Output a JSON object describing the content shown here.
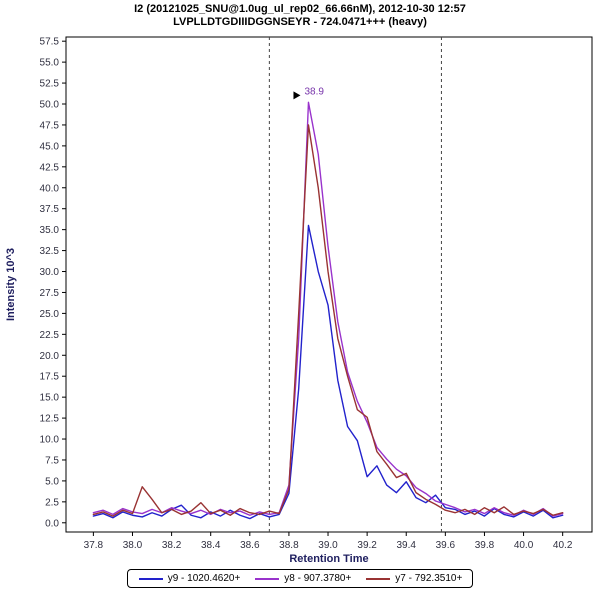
{
  "header": {
    "title_line1": "I2 (20121025_SNU@1.0ug_ul_rep02_66.66nM), 2012-10-30 12:57",
    "title_line2": "LVPLLDTGDIIIDGGNSEYR - 724.0471+++ (heavy)"
  },
  "chart_data": {
    "type": "line",
    "title": "I2 (20121025_SNU@1.0ug_ul_rep02_66.66nM), 2012-10-30 12:57",
    "subtitle": "LVPLLDTGDIIIDGGNSEYR - 724.0471+++ (heavy)",
    "xlabel": "Retention Time",
    "ylabel": "Intensity 10^3",
    "xlim": [
      37.66,
      40.35
    ],
    "ylim": [
      -1.1,
      58.0
    ],
    "xticks": [
      37.8,
      38.0,
      38.2,
      38.4,
      38.6,
      38.8,
      39.0,
      39.2,
      39.4,
      39.6,
      39.8,
      40.0,
      40.2
    ],
    "yticks": [
      0.0,
      2.5,
      5.0,
      7.5,
      10.0,
      12.5,
      15.0,
      17.5,
      20.0,
      22.5,
      25.0,
      27.5,
      30.0,
      32.5,
      35.0,
      37.5,
      40.0,
      42.5,
      45.0,
      47.5,
      50.0,
      52.5,
      55.0,
      57.5
    ],
    "grid": false,
    "legend_position": "bottom",
    "boundaries": [
      38.7,
      39.58
    ],
    "peak_annotation": {
      "x": 38.9,
      "y": 50.2,
      "label": "38.9"
    },
    "colors": {
      "tick_label": "#303040",
      "axis_title": "#202060",
      "boundary": "#444444",
      "annotation_text": "#7733aa",
      "peak_arrow": "#000000",
      "plot_border": "#000000"
    },
    "x": [
      37.8,
      37.85,
      37.9,
      37.95,
      38.0,
      38.05,
      38.1,
      38.15,
      38.2,
      38.25,
      38.3,
      38.35,
      38.4,
      38.45,
      38.5,
      38.55,
      38.6,
      38.65,
      38.7,
      38.75,
      38.8,
      38.85,
      38.9,
      38.95,
      39.0,
      39.05,
      39.1,
      39.15,
      39.2,
      39.25,
      39.3,
      39.35,
      39.4,
      39.45,
      39.5,
      39.55,
      39.6,
      39.65,
      39.7,
      39.75,
      39.8,
      39.85,
      39.9,
      39.95,
      40.0,
      40.05,
      40.1,
      40.15,
      40.2
    ],
    "series": [
      {
        "id": "y9",
        "name": "y9 - 1020.4620+",
        "color": "#2222cc",
        "values": [
          0.8,
          1.1,
          0.6,
          1.3,
          0.9,
          0.7,
          1.2,
          0.8,
          1.6,
          2.1,
          0.9,
          0.6,
          1.3,
          0.8,
          1.5,
          0.9,
          0.5,
          1.1,
          0.7,
          1.0,
          3.5,
          16.0,
          35.5,
          30.0,
          26.0,
          17.0,
          11.5,
          9.8,
          5.5,
          6.8,
          4.5,
          3.6,
          4.9,
          3.0,
          2.4,
          3.3,
          1.8,
          1.6,
          1.0,
          1.4,
          0.8,
          1.7,
          1.0,
          0.7,
          1.3,
          0.8,
          1.5,
          0.6,
          0.9
        ]
      },
      {
        "id": "y8",
        "name": "y8 - 907.3780+",
        "color": "#9933cc",
        "values": [
          1.2,
          1.5,
          1.0,
          1.7,
          1.3,
          1.1,
          1.6,
          1.2,
          1.8,
          1.4,
          1.1,
          1.5,
          1.0,
          1.6,
          1.2,
          1.4,
          0.9,
          1.3,
          1.0,
          1.2,
          4.5,
          22.0,
          50.2,
          44.0,
          33.0,
          24.0,
          18.0,
          14.5,
          12.0,
          9.0,
          7.6,
          6.4,
          5.6,
          4.2,
          3.5,
          2.6,
          2.2,
          1.8,
          1.3,
          1.6,
          1.1,
          1.8,
          1.2,
          0.9,
          1.5,
          1.0,
          1.7,
          0.8,
          1.1
        ]
      },
      {
        "id": "y7",
        "name": "y7 - 792.3510+",
        "color": "#993333",
        "values": [
          1.0,
          1.3,
          0.8,
          1.5,
          1.1,
          4.3,
          2.8,
          1.2,
          1.6,
          1.0,
          1.4,
          2.4,
          1.1,
          1.5,
          0.9,
          1.7,
          1.2,
          1.0,
          1.4,
          1.1,
          4.0,
          25.0,
          47.5,
          40.0,
          30.0,
          22.0,
          17.5,
          13.5,
          12.6,
          8.5,
          7.0,
          5.4,
          5.9,
          3.6,
          2.8,
          2.2,
          1.5,
          1.2,
          1.6,
          1.0,
          1.8,
          1.2,
          1.9,
          1.0,
          1.4,
          1.1,
          1.6,
          0.9,
          1.2
        ]
      }
    ]
  }
}
